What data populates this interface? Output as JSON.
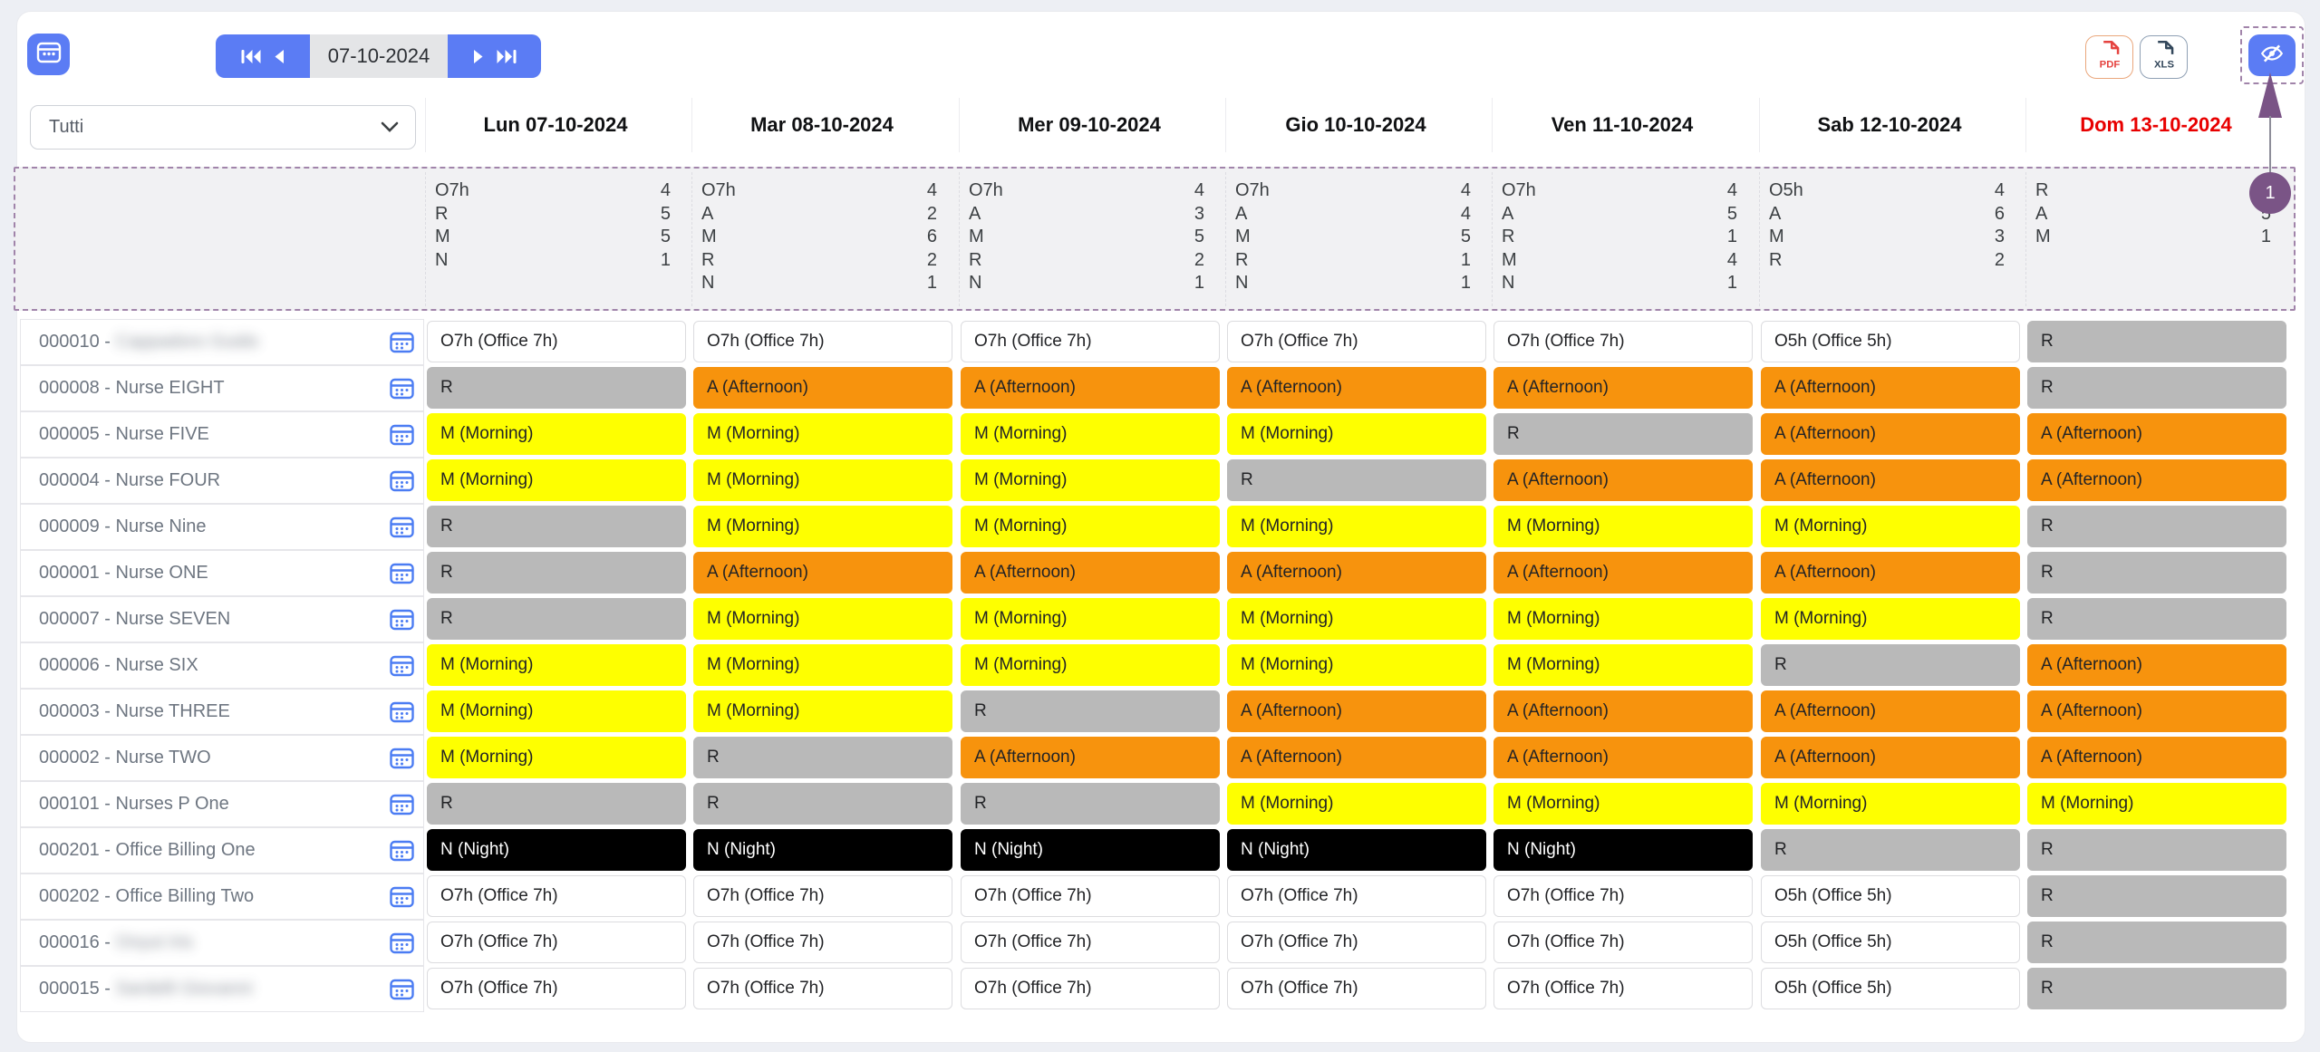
{
  "page_background": "#edeff4",
  "colors": {
    "primary_blue": "#5b7cf4",
    "morning_yellow": "#feff00",
    "afternoon_orange": "#f7930d",
    "rest_gray": "#b9b9b9",
    "night_black": "#000000",
    "office_white": "#ffffff",
    "sunday_red": "#e80000",
    "highlight_purple": "#7a5486"
  },
  "icons": [
    "calendar-icon",
    "skip-first-icon",
    "prev-icon",
    "next-icon",
    "skip-last-icon",
    "pdf-file-icon",
    "xls-file-icon",
    "eye-off-icon",
    "chevron-down-icon",
    "row-calendar-icon"
  ],
  "toolbar": {
    "date_value": "07-10-2024",
    "export_pdf_label": "PDF",
    "export_xls_label": "XLS"
  },
  "filter": {
    "selected": "Tutti"
  },
  "annotation": {
    "step": "1"
  },
  "shift_types": {
    "O7h": {
      "label": "O7h (Office 7h)",
      "bg": "#ffffff",
      "fg": "#222326",
      "border": "#dcdcdf"
    },
    "O5h": {
      "label": "O5h (Office 5h)",
      "bg": "#ffffff",
      "fg": "#222326",
      "border": "#dcdcdf"
    },
    "R": {
      "label": "R",
      "bg": "#b9b9b9",
      "fg": "#222326",
      "border": "#b9b9b9"
    },
    "M": {
      "label": "M (Morning)",
      "bg": "#feff00",
      "fg": "#222326",
      "border": "#feff00"
    },
    "A": {
      "label": "A (Afternoon)",
      "bg": "#f7930d",
      "fg": "#222326",
      "border": "#f7930d"
    },
    "N": {
      "label": "N (Night)",
      "bg": "#000000",
      "fg": "#ffffff",
      "border": "#000000"
    }
  },
  "table": {
    "days": [
      {
        "label": "Lun 07-10-2024",
        "header_color": "#101113",
        "summary": [
          [
            "O7h",
            "4"
          ],
          [
            "R",
            "5"
          ],
          [
            "M",
            "5"
          ],
          [
            "N",
            "1"
          ]
        ]
      },
      {
        "label": "Mar 08-10-2024",
        "header_color": "#101113",
        "summary": [
          [
            "O7h",
            "4"
          ],
          [
            "A",
            "2"
          ],
          [
            "M",
            "6"
          ],
          [
            "R",
            "2"
          ],
          [
            "N",
            "1"
          ]
        ]
      },
      {
        "label": "Mer 09-10-2024",
        "header_color": "#101113",
        "summary": [
          [
            "O7h",
            "4"
          ],
          [
            "A",
            "3"
          ],
          [
            "M",
            "5"
          ],
          [
            "R",
            "2"
          ],
          [
            "N",
            "1"
          ]
        ]
      },
      {
        "label": "Gio 10-10-2024",
        "header_color": "#101113",
        "summary": [
          [
            "O7h",
            "4"
          ],
          [
            "A",
            "4"
          ],
          [
            "M",
            "5"
          ],
          [
            "R",
            "1"
          ],
          [
            "N",
            "1"
          ]
        ]
      },
      {
        "label": "Ven 11-10-2024",
        "header_color": "#101113",
        "summary": [
          [
            "O7h",
            "4"
          ],
          [
            "A",
            "5"
          ],
          [
            "R",
            "1"
          ],
          [
            "M",
            "4"
          ],
          [
            "N",
            "1"
          ]
        ]
      },
      {
        "label": "Sab 12-10-2024",
        "header_color": "#101113",
        "summary": [
          [
            "O5h",
            "4"
          ],
          [
            "A",
            "6"
          ],
          [
            "M",
            "3"
          ],
          [
            "R",
            "2"
          ]
        ]
      },
      {
        "label": "Dom 13-10-2024",
        "header_color": "#e80000",
        "summary": [
          [
            "R",
            "9"
          ],
          [
            "A",
            "5"
          ],
          [
            "M",
            "1"
          ]
        ]
      }
    ],
    "rows": [
      {
        "code": "000010",
        "name": "Cappadoro Guido",
        "name_blurred": true,
        "shifts": [
          "O7h",
          "O7h",
          "O7h",
          "O7h",
          "O7h",
          "O5h",
          "R"
        ]
      },
      {
        "code": "000008",
        "name": "Nurse EIGHT",
        "name_blurred": false,
        "shifts": [
          "R",
          "A",
          "A",
          "A",
          "A",
          "A",
          "R"
        ]
      },
      {
        "code": "000005",
        "name": "Nurse FIVE",
        "name_blurred": false,
        "shifts": [
          "M",
          "M",
          "M",
          "M",
          "R",
          "A",
          "A"
        ]
      },
      {
        "code": "000004",
        "name": "Nurse FOUR",
        "name_blurred": false,
        "shifts": [
          "M",
          "M",
          "M",
          "R",
          "A",
          "A",
          "A"
        ]
      },
      {
        "code": "000009",
        "name": "Nurse Nine",
        "name_blurred": false,
        "shifts": [
          "R",
          "M",
          "M",
          "M",
          "M",
          "M",
          "R"
        ]
      },
      {
        "code": "000001",
        "name": "Nurse ONE",
        "name_blurred": false,
        "shifts": [
          "R",
          "A",
          "A",
          "A",
          "A",
          "A",
          "R"
        ]
      },
      {
        "code": "000007",
        "name": "Nurse SEVEN",
        "name_blurred": false,
        "shifts": [
          "R",
          "M",
          "M",
          "M",
          "M",
          "M",
          "R"
        ]
      },
      {
        "code": "000006",
        "name": "Nurse SIX",
        "name_blurred": false,
        "shifts": [
          "M",
          "M",
          "M",
          "M",
          "M",
          "R",
          "A"
        ]
      },
      {
        "code": "000003",
        "name": "Nurse THREE",
        "name_blurred": false,
        "shifts": [
          "M",
          "M",
          "R",
          "A",
          "A",
          "A",
          "A"
        ]
      },
      {
        "code": "000002",
        "name": "Nurse TWO",
        "name_blurred": false,
        "shifts": [
          "M",
          "R",
          "A",
          "A",
          "A",
          "A",
          "A"
        ]
      },
      {
        "code": "000101",
        "name": "Nurses P One",
        "name_blurred": false,
        "shifts": [
          "R",
          "R",
          "R",
          "M",
          "M",
          "M",
          "M"
        ]
      },
      {
        "code": "000201",
        "name": "Office Billing One",
        "name_blurred": false,
        "shifts": [
          "N",
          "N",
          "N",
          "N",
          "N",
          "R",
          "R"
        ]
      },
      {
        "code": "000202",
        "name": "Office Billing Two",
        "name_blurred": false,
        "shifts": [
          "O7h",
          "O7h",
          "O7h",
          "O7h",
          "O7h",
          "O5h",
          "R"
        ]
      },
      {
        "code": "000016",
        "name": "Onyut Iris",
        "name_blurred": true,
        "shifts": [
          "O7h",
          "O7h",
          "O7h",
          "O7h",
          "O7h",
          "O5h",
          "R"
        ]
      },
      {
        "code": "000015",
        "name": "Sardelli Giovanni",
        "name_blurred": true,
        "shifts": [
          "O7h",
          "O7h",
          "O7h",
          "O7h",
          "O7h",
          "O5h",
          "R"
        ]
      }
    ]
  }
}
